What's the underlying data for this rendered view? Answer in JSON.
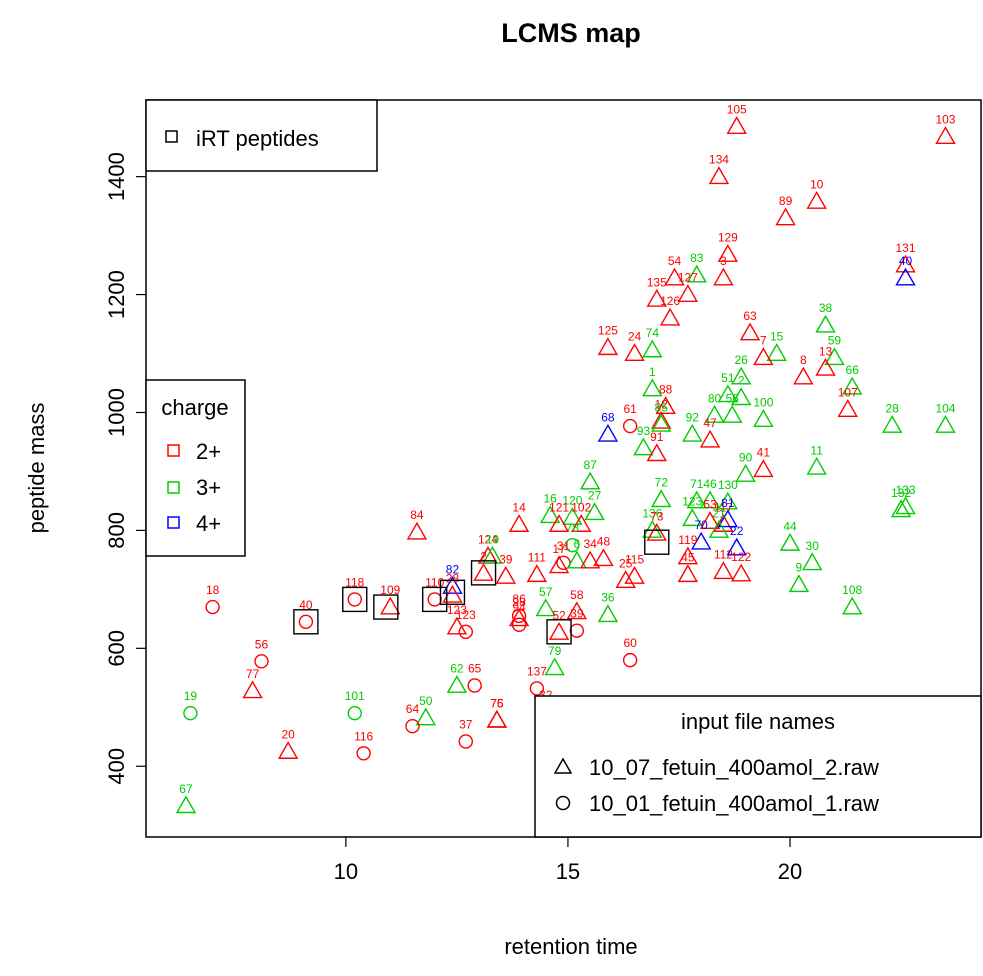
{
  "chart_data": {
    "type": "scatter",
    "title": "LCMS map",
    "xlabel": "retention time",
    "ylabel": "peptide mass",
    "xlim": [
      5.5,
      24.3
    ],
    "ylim": [
      280,
      1530
    ],
    "x_ticks": [
      10,
      15,
      20
    ],
    "y_ticks": [
      400,
      600,
      800,
      1000,
      1200,
      1400
    ],
    "x_tick_labels": [
      "10",
      "15",
      "20"
    ],
    "y_tick_labels": [
      "400",
      "600",
      "800",
      "1000",
      "1200",
      "1400"
    ],
    "grid": false,
    "colors": {
      "2+": "#ff0000",
      "3+": "#00cd00",
      "4+": "#0000ff",
      "irt": "#000000"
    },
    "legends": {
      "irt": {
        "position": "top-left",
        "label": "iRT peptides"
      },
      "charge": {
        "position": "left",
        "title": "charge",
        "items": [
          "2+",
          "3+",
          "4+"
        ]
      },
      "files": {
        "position": "bottom-right",
        "title": "input file names",
        "items": [
          "10_07_fetuin_400amol_2.raw",
          "10_01_fetuin_400amol_1.raw"
        ]
      }
    },
    "marker_legend": {
      "triangle": "10_07_fetuin_400amol_2.raw",
      "circle": "10_01_fetuin_400amol_1.raw"
    },
    "points": [
      {
        "label": "105",
        "x": 18.8,
        "y": 1485,
        "charge": "2+",
        "shape": "triangle"
      },
      {
        "label": "103",
        "x": 23.5,
        "y": 1468,
        "charge": "2+",
        "shape": "triangle"
      },
      {
        "label": "134",
        "x": 18.4,
        "y": 1400,
        "charge": "2+",
        "shape": "triangle"
      },
      {
        "label": "10",
        "x": 20.6,
        "y": 1358,
        "charge": "2+",
        "shape": "triangle"
      },
      {
        "label": "89",
        "x": 19.9,
        "y": 1330,
        "charge": "2+",
        "shape": "triangle"
      },
      {
        "label": "129",
        "x": 18.6,
        "y": 1268,
        "charge": "2+",
        "shape": "triangle"
      },
      {
        "label": "131",
        "x": 22.6,
        "y": 1250,
        "charge": "2+",
        "shape": "triangle"
      },
      {
        "label": "40",
        "x": 22.6,
        "y": 1228,
        "charge": "4+",
        "shape": "triangle"
      },
      {
        "label": "83",
        "x": 17.9,
        "y": 1233,
        "charge": "3+",
        "shape": "triangle"
      },
      {
        "label": "54",
        "x": 17.4,
        "y": 1228,
        "charge": "2+",
        "shape": "triangle"
      },
      {
        "label": "3",
        "x": 18.5,
        "y": 1228,
        "charge": "2+",
        "shape": "triangle"
      },
      {
        "label": "127",
        "x": 17.7,
        "y": 1200,
        "charge": "2+",
        "shape": "triangle"
      },
      {
        "label": "135",
        "x": 17.0,
        "y": 1192,
        "charge": "2+",
        "shape": "triangle"
      },
      {
        "label": "126",
        "x": 17.3,
        "y": 1160,
        "charge": "2+",
        "shape": "triangle"
      },
      {
        "label": "63",
        "x": 19.1,
        "y": 1135,
        "charge": "2+",
        "shape": "triangle"
      },
      {
        "label": "38",
        "x": 20.8,
        "y": 1148,
        "charge": "3+",
        "shape": "triangle"
      },
      {
        "label": "125",
        "x": 15.9,
        "y": 1110,
        "charge": "2+",
        "shape": "triangle"
      },
      {
        "label": "74",
        "x": 16.9,
        "y": 1106,
        "charge": "3+",
        "shape": "triangle"
      },
      {
        "label": "24",
        "x": 16.5,
        "y": 1100,
        "charge": "2+",
        "shape": "triangle"
      },
      {
        "label": "15",
        "x": 19.7,
        "y": 1100,
        "charge": "3+",
        "shape": "triangle"
      },
      {
        "label": "59",
        "x": 21.0,
        "y": 1093,
        "charge": "3+",
        "shape": "triangle"
      },
      {
        "label": "7",
        "x": 19.4,
        "y": 1093,
        "charge": "2+",
        "shape": "triangle"
      },
      {
        "label": "13",
        "x": 20.8,
        "y": 1075,
        "charge": "2+",
        "shape": "triangle"
      },
      {
        "label": "8",
        "x": 20.3,
        "y": 1060,
        "charge": "2+",
        "shape": "triangle"
      },
      {
        "label": "26",
        "x": 18.9,
        "y": 1060,
        "charge": "3+",
        "shape": "triangle"
      },
      {
        "label": "66",
        "x": 21.4,
        "y": 1043,
        "charge": "3+",
        "shape": "triangle"
      },
      {
        "label": "1",
        "x": 16.9,
        "y": 1040,
        "charge": "3+",
        "shape": "triangle"
      },
      {
        "label": "51",
        "x": 18.6,
        "y": 1030,
        "charge": "3+",
        "shape": "triangle"
      },
      {
        "label": "2",
        "x": 18.9,
        "y": 1025,
        "charge": "3+",
        "shape": "triangle"
      },
      {
        "label": "88",
        "x": 17.2,
        "y": 1010,
        "charge": "2+",
        "shape": "triangle"
      },
      {
        "label": "107",
        "x": 21.3,
        "y": 1005,
        "charge": "2+",
        "shape": "triangle"
      },
      {
        "label": "80",
        "x": 18.3,
        "y": 995,
        "charge": "3+",
        "shape": "triangle"
      },
      {
        "label": "56",
        "x": 18.7,
        "y": 995,
        "charge": "3+",
        "shape": "triangle"
      },
      {
        "label": "100",
        "x": 19.4,
        "y": 988,
        "charge": "3+",
        "shape": "triangle"
      },
      {
        "label": "12",
        "x": 17.1,
        "y": 985,
        "charge": "2+",
        "shape": "triangle"
      },
      {
        "label": "85",
        "x": 17.1,
        "y": 980,
        "charge": "3+",
        "shape": "triangle"
      },
      {
        "label": "28",
        "x": 22.3,
        "y": 978,
        "charge": "3+",
        "shape": "triangle"
      },
      {
        "label": "104",
        "x": 23.5,
        "y": 978,
        "charge": "3+",
        "shape": "triangle"
      },
      {
        "label": "68",
        "x": 15.9,
        "y": 963,
        "charge": "4+",
        "shape": "triangle"
      },
      {
        "label": "61",
        "x": 16.4,
        "y": 977,
        "charge": "2+",
        "shape": "circle"
      },
      {
        "label": "92",
        "x": 17.8,
        "y": 963,
        "charge": "3+",
        "shape": "triangle"
      },
      {
        "label": "47",
        "x": 18.2,
        "y": 953,
        "charge": "2+",
        "shape": "triangle"
      },
      {
        "label": "93",
        "x": 16.7,
        "y": 940,
        "charge": "3+",
        "shape": "triangle"
      },
      {
        "label": "91",
        "x": 17.0,
        "y": 930,
        "charge": "2+",
        "shape": "triangle"
      },
      {
        "label": "90",
        "x": 19.0,
        "y": 895,
        "charge": "3+",
        "shape": "triangle"
      },
      {
        "label": "41",
        "x": 19.4,
        "y": 903,
        "charge": "2+",
        "shape": "triangle"
      },
      {
        "label": "11",
        "x": 20.6,
        "y": 907,
        "charge": "3+",
        "shape": "triangle"
      },
      {
        "label": "87",
        "x": 15.5,
        "y": 882,
        "charge": "3+",
        "shape": "triangle"
      },
      {
        "label": "72",
        "x": 17.1,
        "y": 852,
        "charge": "3+",
        "shape": "triangle"
      },
      {
        "label": "71",
        "x": 17.9,
        "y": 850,
        "charge": "3+",
        "shape": "triangle"
      },
      {
        "label": "46",
        "x": 18.2,
        "y": 850,
        "charge": "3+",
        "shape": "triangle"
      },
      {
        "label": "130",
        "x": 18.6,
        "y": 848,
        "charge": "3+",
        "shape": "triangle"
      },
      {
        "label": "133",
        "x": 22.6,
        "y": 840,
        "charge": "3+",
        "shape": "triangle"
      },
      {
        "label": "132",
        "x": 22.5,
        "y": 835,
        "charge": "3+",
        "shape": "triangle"
      },
      {
        "label": "16",
        "x": 14.6,
        "y": 825,
        "charge": "3+",
        "shape": "triangle"
      },
      {
        "label": "120",
        "x": 15.1,
        "y": 822,
        "charge": "3+",
        "shape": "triangle"
      },
      {
        "label": "27",
        "x": 15.6,
        "y": 830,
        "charge": "3+",
        "shape": "triangle"
      },
      {
        "label": "14",
        "x": 13.9,
        "y": 810,
        "charge": "2+",
        "shape": "triangle"
      },
      {
        "label": "121",
        "x": 14.8,
        "y": 810,
        "charge": "2+",
        "shape": "triangle"
      },
      {
        "label": "102",
        "x": 15.3,
        "y": 810,
        "charge": "2+",
        "shape": "triangle"
      },
      {
        "label": "84",
        "x": 11.6,
        "y": 797,
        "charge": "2+",
        "shape": "triangle"
      },
      {
        "label": "123",
        "x": 17.8,
        "y": 820,
        "charge": "3+",
        "shape": "triangle"
      },
      {
        "label": "53",
        "x": 18.2,
        "y": 815,
        "charge": "2+",
        "shape": "triangle"
      },
      {
        "label": "117",
        "x": 18.5,
        "y": 810,
        "charge": "2+",
        "shape": "triangle"
      },
      {
        "label": "81",
        "x": 18.6,
        "y": 818,
        "charge": "4+",
        "shape": "triangle"
      },
      {
        "label": "21",
        "x": 18.4,
        "y": 800,
        "charge": "3+",
        "shape": "triangle"
      },
      {
        "label": "136",
        "x": 16.9,
        "y": 800,
        "charge": "3+",
        "shape": "triangle"
      },
      {
        "label": "73",
        "x": 17.0,
        "y": 795,
        "charge": "2+",
        "shape": "triangle"
      },
      {
        "label": "70",
        "x": 18.0,
        "y": 780,
        "charge": "4+",
        "shape": "triangle"
      },
      {
        "label": "22",
        "x": 18.8,
        "y": 770,
        "charge": "4+",
        "shape": "triangle"
      },
      {
        "label": "44",
        "x": 20.0,
        "y": 778,
        "charge": "3+",
        "shape": "triangle"
      },
      {
        "label": "30",
        "x": 20.5,
        "y": 745,
        "charge": "3+",
        "shape": "triangle"
      },
      {
        "label": "124",
        "x": 13.2,
        "y": 756,
        "charge": "2+",
        "shape": "triangle"
      },
      {
        "label": "19",
        "x": 13.3,
        "y": 756,
        "charge": "3+",
        "shape": "triangle"
      },
      {
        "label": "2",
        "x": 13.1,
        "y": 727,
        "charge": "2+",
        "shape": "triangle"
      },
      {
        "label": "39",
        "x": 13.6,
        "y": 722,
        "charge": "2+",
        "shape": "triangle"
      },
      {
        "label": "31",
        "x": 14.9,
        "y": 745,
        "charge": "2+",
        "shape": "circle"
      },
      {
        "label": "6",
        "x": 15.2,
        "y": 748,
        "charge": "3+",
        "shape": "triangle"
      },
      {
        "label": "78",
        "x": 15.1,
        "y": 775,
        "charge": "3+",
        "shape": "circle"
      },
      {
        "label": "17",
        "x": 14.8,
        "y": 740,
        "charge": "2+",
        "shape": "triangle"
      },
      {
        "label": "111",
        "x": 14.3,
        "y": 725,
        "charge": "2+",
        "shape": "triangle"
      },
      {
        "label": "48",
        "x": 15.8,
        "y": 752,
        "charge": "2+",
        "shape": "triangle"
      },
      {
        "label": "34",
        "x": 15.5,
        "y": 748,
        "charge": "2+",
        "shape": "triangle"
      },
      {
        "label": "115",
        "x": 16.5,
        "y": 722,
        "charge": "2+",
        "shape": "triangle"
      },
      {
        "label": "25",
        "x": 16.3,
        "y": 715,
        "charge": "2+",
        "shape": "triangle"
      },
      {
        "label": "119",
        "x": 17.7,
        "y": 755,
        "charge": "2+",
        "shape": "triangle"
      },
      {
        "label": "45",
        "x": 17.7,
        "y": 725,
        "charge": "2+",
        "shape": "triangle"
      },
      {
        "label": "112",
        "x": 18.5,
        "y": 730,
        "charge": "2+",
        "shape": "triangle"
      },
      {
        "label": "122",
        "x": 18.9,
        "y": 726,
        "charge": "2+",
        "shape": "triangle"
      },
      {
        "label": "9",
        "x": 20.2,
        "y": 708,
        "charge": "3+",
        "shape": "triangle"
      },
      {
        "label": "108",
        "x": 21.4,
        "y": 670,
        "charge": "3+",
        "shape": "triangle"
      },
      {
        "label": "118",
        "x": 10.2,
        "y": 683,
        "charge": "2+",
        "shape": "circle"
      },
      {
        "label": "109",
        "x": 11.0,
        "y": 670,
        "charge": "2+",
        "shape": "triangle"
      },
      {
        "label": "110",
        "x": 12.0,
        "y": 683,
        "charge": "2+",
        "shape": "circle"
      },
      {
        "label": "82",
        "x": 12.4,
        "y": 705,
        "charge": "4+",
        "shape": "triangle"
      },
      {
        "label": "28",
        "x": 12.4,
        "y": 690,
        "charge": "2+",
        "shape": "triangle"
      },
      {
        "label": "123",
        "x": 12.5,
        "y": 636,
        "charge": "2+",
        "shape": "triangle"
      },
      {
        "label": "40",
        "x": 9.1,
        "y": 645,
        "charge": "2+",
        "shape": "circle"
      },
      {
        "label": "18",
        "x": 7.0,
        "y": 670,
        "charge": "2+",
        "shape": "circle"
      },
      {
        "label": "98",
        "x": 13.9,
        "y": 650,
        "charge": "2+",
        "shape": "triangle"
      },
      {
        "label": "94",
        "x": 13.9,
        "y": 640,
        "charge": "2+",
        "shape": "circle"
      },
      {
        "label": "86",
        "x": 13.9,
        "y": 655,
        "charge": "2+",
        "shape": "circle"
      },
      {
        "label": "57",
        "x": 14.5,
        "y": 667,
        "charge": "3+",
        "shape": "triangle"
      },
      {
        "label": "58",
        "x": 15.2,
        "y": 662,
        "charge": "2+",
        "shape": "triangle"
      },
      {
        "label": "36",
        "x": 15.9,
        "y": 657,
        "charge": "3+",
        "shape": "triangle"
      },
      {
        "label": "52",
        "x": 14.8,
        "y": 627,
        "charge": "2+",
        "shape": "triangle"
      },
      {
        "label": "39",
        "x": 15.2,
        "y": 630,
        "charge": "2+",
        "shape": "circle"
      },
      {
        "label": "60",
        "x": 16.4,
        "y": 580,
        "charge": "2+",
        "shape": "circle"
      },
      {
        "label": "123",
        "x": 12.7,
        "y": 628,
        "charge": "2+",
        "shape": "circle"
      },
      {
        "label": "56",
        "x": 8.1,
        "y": 578,
        "charge": "2+",
        "shape": "circle"
      },
      {
        "label": "77",
        "x": 7.9,
        "y": 528,
        "charge": "2+",
        "shape": "triangle"
      },
      {
        "label": "79",
        "x": 14.7,
        "y": 567,
        "charge": "3+",
        "shape": "triangle"
      },
      {
        "label": "62",
        "x": 12.5,
        "y": 537,
        "charge": "3+",
        "shape": "triangle"
      },
      {
        "label": "65",
        "x": 12.9,
        "y": 537,
        "charge": "2+",
        "shape": "circle"
      },
      {
        "label": "137",
        "x": 14.3,
        "y": 532,
        "charge": "2+",
        "shape": "circle"
      },
      {
        "label": "19",
        "x": 6.5,
        "y": 490,
        "charge": "3+",
        "shape": "circle"
      },
      {
        "label": "101",
        "x": 10.2,
        "y": 490,
        "charge": "3+",
        "shape": "circle"
      },
      {
        "label": "75",
        "x": 13.4,
        "y": 478,
        "charge": "2+",
        "shape": "triangle"
      },
      {
        "label": "76",
        "x": 13.4,
        "y": 478,
        "charge": "2+",
        "shape": "triangle"
      },
      {
        "label": "32",
        "x": 14.5,
        "y": 492,
        "charge": "2+",
        "shape": "circle"
      },
      {
        "label": "50",
        "x": 11.8,
        "y": 482,
        "charge": "3+",
        "shape": "triangle"
      },
      {
        "label": "64",
        "x": 11.5,
        "y": 468,
        "charge": "2+",
        "shape": "circle"
      },
      {
        "label": "37",
        "x": 12.7,
        "y": 442,
        "charge": "2+",
        "shape": "circle"
      },
      {
        "label": "20",
        "x": 8.7,
        "y": 425,
        "charge": "2+",
        "shape": "triangle"
      },
      {
        "label": "116",
        "x": 10.4,
        "y": 422,
        "charge": "2+",
        "shape": "circle"
      },
      {
        "label": "67",
        "x": 6.4,
        "y": 333,
        "charge": "3+",
        "shape": "triangle"
      }
    ],
    "irt_points": [
      {
        "x": 9.1,
        "y": 645
      },
      {
        "x": 10.2,
        "y": 683
      },
      {
        "x": 10.9,
        "y": 670
      },
      {
        "x": 12.0,
        "y": 683
      },
      {
        "x": 12.4,
        "y": 695
      },
      {
        "x": 13.1,
        "y": 728
      },
      {
        "x": 14.8,
        "y": 628
      },
      {
        "x": 17.0,
        "y": 780
      }
    ]
  }
}
